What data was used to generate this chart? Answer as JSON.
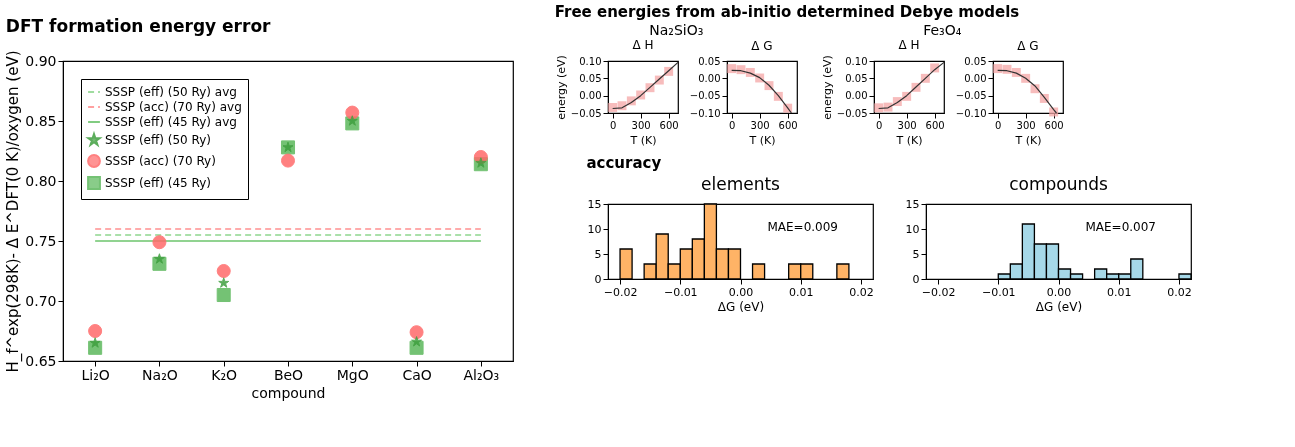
{
  "chart_data": [
    {
      "type": "scatter",
      "title": "DFT formation energy error",
      "xlabel": "compound",
      "ylabel": "H_f^exp(298K)- Δ E^DFT(0 K)/oxygen (eV)",
      "categories": [
        "Li₂O",
        "Na₂O",
        "K₂O",
        "BeO",
        "MgO",
        "CaO",
        "Al₂O₃"
      ],
      "ylim": [
        0.65,
        0.9
      ],
      "yticks": [
        {
          "value": 0.65,
          "label": "0.65"
        },
        {
          "value": 0.7,
          "label": "0.70"
        },
        {
          "value": 0.75,
          "label": "0.75"
        },
        {
          "value": 0.8,
          "label": "0.80"
        },
        {
          "value": 0.85,
          "label": "0.85"
        },
        {
          "value": 0.9,
          "label": "0.90"
        }
      ],
      "grid": false,
      "legend": "top left",
      "series": [
        {
          "name": "SSSP (eff) (50 Ry) avg",
          "type": "line",
          "line_style": "dashed",
          "color": "#8fd68f",
          "values": [
            0.755,
            0.755,
            0.755,
            0.755,
            0.755,
            0.755,
            0.755
          ]
        },
        {
          "name": "SSSP (acc) (70 Ry) avg",
          "type": "line",
          "line_style": "dashed",
          "color": "#ff9090",
          "values": [
            0.76,
            0.76,
            0.76,
            0.76,
            0.76,
            0.76,
            0.76
          ]
        },
        {
          "name": "SSSP (eff) (45 Ry) avg",
          "type": "line",
          "line_style": "solid",
          "color": "#6cc46c",
          "values": [
            0.75,
            0.75,
            0.75,
            0.75,
            0.75,
            0.75,
            0.75
          ]
        },
        {
          "name": "SSSP (eff) (50 Ry)",
          "type": "scatter",
          "marker": "star",
          "color": "#3f9f3f",
          "values": [
            0.665,
            0.735,
            0.715,
            0.828,
            0.85,
            0.666,
            0.815
          ]
        },
        {
          "name": "SSSP (acc) (70 Ry)",
          "type": "scatter",
          "marker": "circle",
          "color": "#ff6b6b",
          "values": [
            0.675,
            0.749,
            0.725,
            0.817,
            0.857,
            0.674,
            0.82
          ]
        },
        {
          "name": "SSSP (eff) (45 Ry)",
          "type": "scatter",
          "marker": "square",
          "color": "#5cb85c",
          "values": [
            0.661,
            0.731,
            0.705,
            0.828,
            0.848,
            0.661,
            0.814
          ]
        }
      ]
    },
    {
      "type": "line",
      "title": "Δ H",
      "annotations": [
        "Free energies from ab-initio determined Debye models",
        "Na₂SiO₃"
      ],
      "xlabel": "T (K)",
      "ylabel": "energy (eV)",
      "xlim": [
        -50,
        700
      ],
      "xticks": [
        0,
        300,
        600
      ],
      "ylim": [
        -0.05,
        0.1
      ],
      "yticks": [
        {
          "value": -0.05,
          "label": "−0.05"
        },
        {
          "value": 0,
          "label": "0.00"
        },
        {
          "value": 0.05,
          "label": "0.05"
        },
        {
          "value": 0.1,
          "label": "0.10"
        }
      ],
      "grid": false,
      "series": [
        {
          "type": "scatter",
          "marker": "square",
          "color": "#f4a6a6",
          "x": [
            0,
            100,
            200,
            300,
            400,
            500,
            600
          ],
          "values": [
            -0.034,
            -0.029,
            -0.015,
            0.002,
            0.023,
            0.045,
            0.07
          ]
        },
        {
          "type": "line",
          "color": "#333333",
          "x": [
            0,
            100,
            200,
            300,
            400,
            500,
            600,
            700
          ],
          "values": [
            -0.037,
            -0.035,
            -0.02,
            0.0,
            0.024,
            0.048,
            0.072,
            0.096
          ]
        }
      ]
    },
    {
      "type": "line",
      "title": "Δ G",
      "xlabel": "T (K)",
      "xlim": [
        -50,
        700
      ],
      "xticks": [
        0,
        300,
        600
      ],
      "ylim": [
        -0.1,
        0.05
      ],
      "yticks": [
        {
          "value": -0.1,
          "label": "−0.10"
        },
        {
          "value": -0.05,
          "label": "−0.05"
        },
        {
          "value": 0,
          "label": "0.00"
        },
        {
          "value": 0.05,
          "label": "0.05"
        }
      ],
      "grid": false,
      "series": [
        {
          "type": "scatter",
          "marker": "square",
          "color": "#f4a6a6",
          "x": [
            0,
            100,
            200,
            300,
            400,
            500,
            600
          ],
          "values": [
            0.028,
            0.025,
            0.017,
            0.001,
            -0.021,
            -0.052,
            -0.086
          ]
        },
        {
          "type": "line",
          "color": "#333333",
          "x": [
            0,
            100,
            200,
            300,
            400,
            500,
            600,
            640
          ],
          "values": [
            0.023,
            0.022,
            0.015,
            0.002,
            -0.02,
            -0.05,
            -0.085,
            -0.1
          ]
        }
      ]
    },
    {
      "type": "line",
      "title": "Δ H",
      "annotations": [
        "Fe₃O₄"
      ],
      "xlabel": "T (K)",
      "ylabel": "energy (eV)",
      "xlim": [
        -50,
        700
      ],
      "xticks": [
        0,
        300,
        600
      ],
      "ylim": [
        -0.05,
        0.1
      ],
      "yticks": [
        {
          "value": -0.05,
          "label": "−0.05"
        },
        {
          "value": 0,
          "label": "0.00"
        },
        {
          "value": 0.05,
          "label": "0.05"
        },
        {
          "value": 0.1,
          "label": "0.10"
        }
      ],
      "grid": false,
      "series": [
        {
          "type": "scatter",
          "marker": "square",
          "color": "#f4a6a6",
          "x": [
            0,
            100,
            200,
            300,
            400,
            500,
            600
          ],
          "values": [
            -0.035,
            -0.033,
            -0.017,
            -0.002,
            0.024,
            0.05,
            0.08
          ]
        },
        {
          "type": "line",
          "color": "#333333",
          "x": [
            0,
            100,
            200,
            300,
            400,
            500,
            600,
            700
          ],
          "values": [
            -0.037,
            -0.035,
            -0.02,
            0.0,
            0.025,
            0.05,
            0.075,
            0.096
          ]
        }
      ]
    },
    {
      "type": "line",
      "title": "Δ G",
      "xlabel": "T (K)",
      "xlim": [
        -50,
        700
      ],
      "xticks": [
        0,
        300,
        600
      ],
      "ylim": [
        -0.1,
        0.05
      ],
      "yticks": [
        {
          "value": -0.1,
          "label": "−0.10"
        },
        {
          "value": -0.05,
          "label": "−0.05"
        },
        {
          "value": 0,
          "label": "0.00"
        },
        {
          "value": 0.05,
          "label": "0.05"
        }
      ],
      "grid": false,
      "series": [
        {
          "type": "scatter",
          "marker": "square",
          "color": "#f4a6a6",
          "x": [
            0,
            100,
            200,
            300,
            400,
            500,
            600
          ],
          "values": [
            0.028,
            0.026,
            0.017,
            0.0,
            -0.03,
            -0.058,
            -0.097
          ]
        },
        {
          "type": "line",
          "color": "#333333",
          "x": [
            0,
            100,
            200,
            300,
            400,
            500,
            600,
            630
          ],
          "values": [
            0.023,
            0.022,
            0.015,
            0.0,
            -0.022,
            -0.055,
            -0.09,
            -0.1
          ]
        }
      ]
    },
    {
      "type": "histogram",
      "title": "elements",
      "annotations": [
        "accuracy",
        "MAE=0.009"
      ],
      "xlabel": "ΔG (eV)",
      "color": "#ffb366",
      "bins": [
        -0.02,
        -0.018,
        -0.016,
        -0.014,
        -0.012,
        -0.01,
        -0.008,
        -0.006,
        -0.004,
        -0.002,
        0,
        0.002,
        0.004,
        0.006,
        0.008,
        0.01,
        0.012,
        0.014,
        0.016,
        0.018
      ],
      "values": [
        6,
        0,
        3,
        9,
        3,
        6,
        8,
        15,
        6,
        6,
        0,
        3,
        0,
        0,
        3,
        3,
        0,
        0,
        3
      ],
      "xlim": [
        -0.022,
        0.022
      ],
      "xticks": [
        {
          "value": -0.02,
          "label": "−0.02"
        },
        {
          "value": -0.01,
          "label": "−0.01"
        },
        {
          "value": 0,
          "label": "0.00"
        },
        {
          "value": 0.01,
          "label": "0.01"
        },
        {
          "value": 0.02,
          "label": "0.02"
        }
      ],
      "ylim": [
        0,
        15
      ],
      "yticks": [
        0,
        5,
        10,
        15
      ],
      "grid": false
    },
    {
      "type": "histogram",
      "title": "compounds",
      "annotations": [
        "MAE=0.007"
      ],
      "xlabel": "ΔG (eV)",
      "color": "#a6d8e8",
      "bins": [
        -0.01,
        -0.008,
        -0.006,
        -0.004,
        -0.002,
        0,
        0.002,
        0.004,
        0.006,
        0.008,
        0.01,
        0.012,
        0.014,
        0.016,
        0.018,
        0.02,
        0.022
      ],
      "values": [
        1,
        3,
        11,
        7,
        7,
        2,
        1,
        0,
        2,
        1,
        1,
        4,
        0,
        0,
        0,
        1
      ],
      "xlim": [
        -0.022,
        0.022
      ],
      "xticks": [
        {
          "value": -0.02,
          "label": "−0.02"
        },
        {
          "value": -0.01,
          "label": "−0.01"
        },
        {
          "value": 0,
          "label": "0.00"
        },
        {
          "value": 0.01,
          "label": "0.01"
        },
        {
          "value": 0.02,
          "label": "0.02"
        }
      ],
      "ylim": [
        0,
        15
      ],
      "yticks": [
        0,
        5,
        10,
        15
      ],
      "grid": false
    }
  ]
}
